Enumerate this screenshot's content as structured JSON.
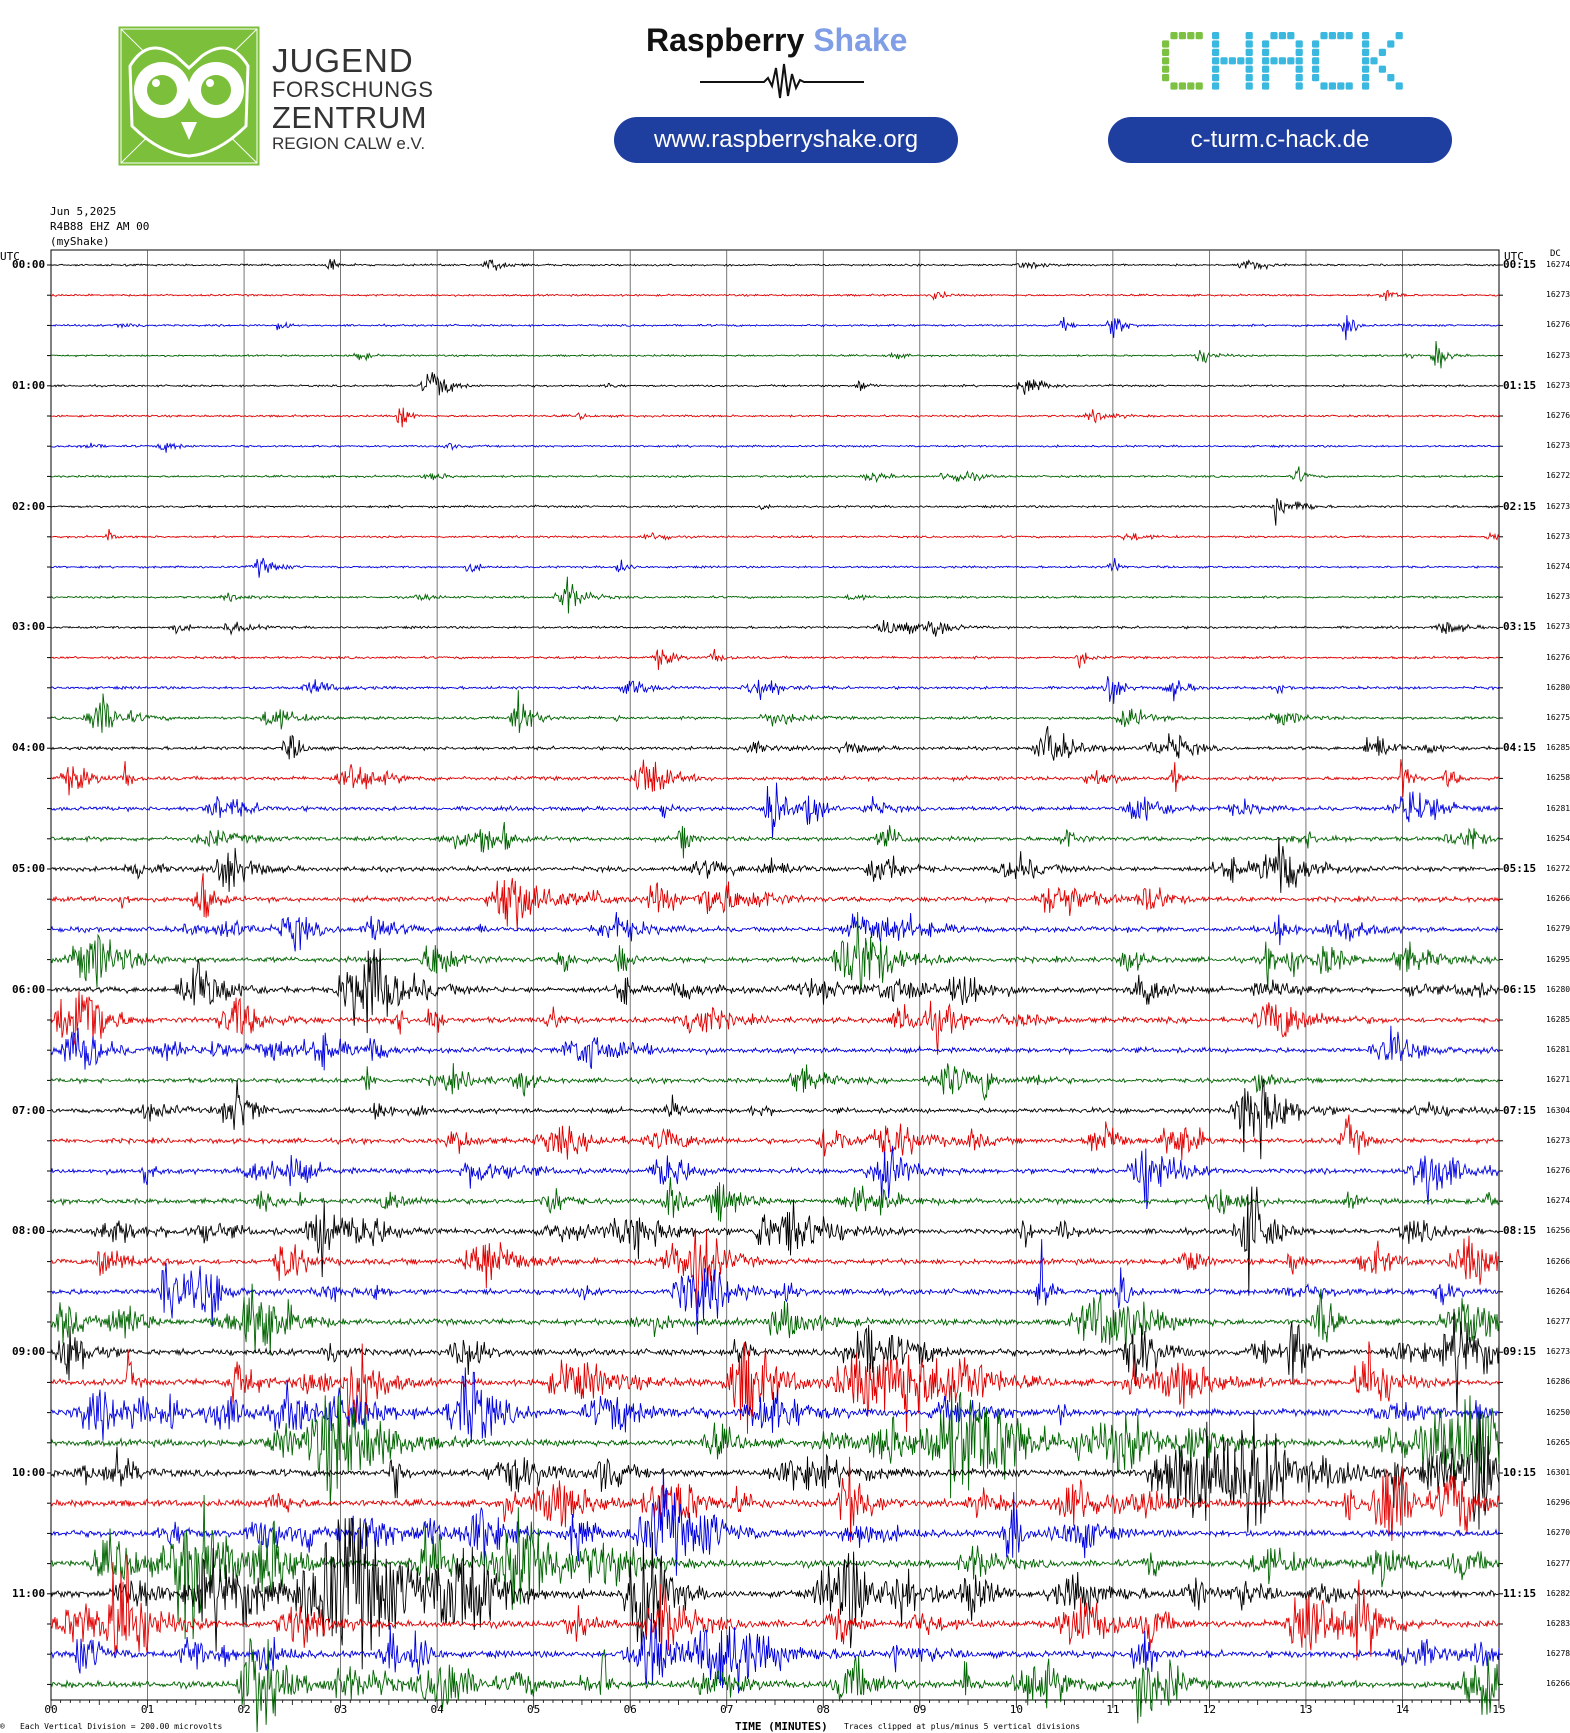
{
  "header": {
    "jfz_logo": {
      "icon": "owl-logo-icon",
      "color": "#7bbf3a",
      "line1": "JUGEND",
      "line2": "FORSCHUNGS",
      "line3": "ZENTRUM",
      "line4": "REGION CALW e.V."
    },
    "raspberry_shake": {
      "name_part1": "Raspberry",
      "name_part2": "Shake",
      "url": "www.raspberryshake.org",
      "icon": "seismic-waveform-icon"
    },
    "chack": {
      "logo_text": "CHACK",
      "url": "c-turm.c-hack.de",
      "colors": [
        "#7cc142",
        "#3bb8e0"
      ]
    },
    "pill_color": "#1e3ea0"
  },
  "chart_data": {
    "type": "line",
    "title": "",
    "meta": {
      "date": "Jun 5,2025",
      "station": "R4B88 EHZ AM 00",
      "network": "(myShake)"
    },
    "left_axis_label": "UTC",
    "right_axis_label": "UTC",
    "dc_label": "DC",
    "xlabel": "TIME (MINUTES)",
    "x_ticks": [
      "00",
      "01",
      "02",
      "03",
      "04",
      "05",
      "06",
      "07",
      "08",
      "09",
      "10",
      "11",
      "12",
      "13",
      "14",
      "15"
    ],
    "xlim": [
      0,
      15
    ],
    "grid": true,
    "rows_per_hour": 4,
    "trace_colors": [
      "#000000",
      "#e00000",
      "#0000e0",
      "#006400"
    ],
    "left_time_labels": [
      "00:00",
      "01:00",
      "02:00",
      "03:00",
      "04:00",
      "05:00",
      "06:00",
      "07:00",
      "08:00",
      "09:00",
      "10:00",
      "11:00"
    ],
    "right_time_labels": [
      "00:15",
      "01:15",
      "02:15",
      "03:15",
      "04:15",
      "05:15",
      "06:15",
      "07:15",
      "08:15",
      "09:15",
      "10:15",
      "11:15"
    ],
    "dc_values": [
      16274,
      16273,
      16276,
      16273,
      16273,
      16276,
      16273,
      16272,
      16273,
      16273,
      16274,
      16273,
      16273,
      16276,
      16280,
      16275,
      16285,
      16258,
      16281,
      16254,
      16272,
      16266,
      16279,
      16295,
      16280,
      16285,
      16281,
      16271,
      16304,
      16273,
      16276,
      16274,
      16256,
      16266,
      16264,
      16277,
      16273,
      16286,
      16250,
      16265,
      16301,
      16296,
      16270,
      16277,
      16282,
      16283,
      16278,
      16266
    ],
    "activity": [
      0.06,
      0.07,
      0.08,
      0.06,
      0.08,
      0.1,
      0.08,
      0.1,
      0.12,
      0.1,
      0.1,
      0.12,
      0.14,
      0.16,
      0.22,
      0.25,
      0.3,
      0.4,
      0.45,
      0.5,
      0.55,
      0.6,
      0.62,
      0.65,
      0.68,
      0.7,
      0.62,
      0.55,
      0.58,
      0.6,
      0.62,
      0.65,
      0.68,
      0.7,
      0.72,
      0.75,
      0.8,
      0.85,
      0.85,
      0.9,
      0.95,
      0.9,
      0.9,
      0.92,
      1.0,
      0.95,
      0.9,
      0.92
    ],
    "footnote_left": "Each Vertical Division =  200.00 microvolts",
    "footnote_right": "Traces clipped at plus/minus 5 vertical divisions",
    "corner_mark": "®"
  }
}
